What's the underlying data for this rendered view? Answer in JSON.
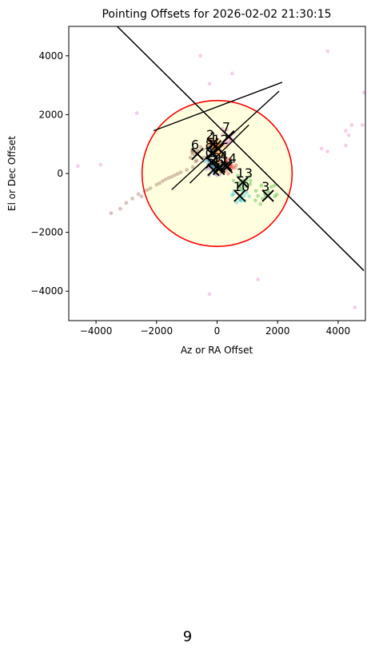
{
  "page": {
    "number": "9"
  },
  "chart_data": {
    "type": "scatter",
    "title": "Pointing Offsets for 2026-02-02 21:30:15",
    "xlabel": "Az or RA Offset",
    "ylabel": "El or Dec Offset",
    "xlim": [
      -4900,
      4900
    ],
    "ylim": [
      -5000,
      5000
    ],
    "xticks": [
      -4000,
      -2000,
      0,
      2000,
      4000
    ],
    "yticks": [
      -4000,
      -2000,
      0,
      2000,
      4000
    ],
    "xtick_labels": [
      "−4000",
      "−2000",
      "0",
      "2000",
      "4000"
    ],
    "ytick_labels": [
      "−4000",
      "−2000",
      "0",
      "2000",
      "4000"
    ],
    "grid": false,
    "circle": {
      "center": [
        0,
        0
      ],
      "radius": 2480,
      "edge_color": "#ff0000",
      "fill_color": "#ffffe0"
    },
    "diagonal_line": {
      "points": [
        [
          -3300,
          5000
        ],
        [
          4850,
          -3300
        ]
      ],
      "color": "#000000"
    },
    "clusters": [
      {
        "label": "0",
        "x": -180,
        "y": 380,
        "color": "#1f77b4",
        "spread": 180
      },
      {
        "label": "1",
        "x": -50,
        "y": 930,
        "color": "#ff7f0e",
        "spread": 120
      },
      {
        "label": "2",
        "x": -150,
        "y": 1000,
        "color": "#ff7f0e",
        "spread": 120
      },
      {
        "label": "3",
        "x": 1680,
        "y": -760,
        "color": "#2ca02c",
        "spread": 280
      },
      {
        "label": "4",
        "x": 300,
        "y": 280,
        "color": "#d62728",
        "spread": 200
      },
      {
        "label": "5",
        "x": -120,
        "y": 120,
        "color": "#9467bd",
        "spread": 200
      },
      {
        "label": "6",
        "x": -650,
        "y": 660,
        "color": "#8c564b",
        "spread": 160
      },
      {
        "label": "7",
        "x": 380,
        "y": 1260,
        "color": "#e377c2",
        "spread": 160
      },
      {
        "label": "8",
        "x": -180,
        "y": 680,
        "color": "#7f7f7f",
        "spread": 150
      },
      {
        "label": "9",
        "x": 80,
        "y": 220,
        "color": "#bcbd22",
        "spread": 150
      },
      {
        "label": "10",
        "x": 750,
        "y": -760,
        "color": "#17becf",
        "spread": 260
      },
      {
        "label": "11",
        "x": 60,
        "y": 150,
        "color": "#1f77b4",
        "spread": 150
      },
      {
        "label": "12",
        "x": 50,
        "y": 840,
        "color": "#ff7f0e",
        "spread": 130
      },
      {
        "label": "13",
        "x": 850,
        "y": -300,
        "color": "#2ca02c",
        "spread": 220
      },
      {
        "label": "14",
        "x": 320,
        "y": 210,
        "color": "#d62728",
        "spread": 180
      }
    ],
    "trail": {
      "color": "#8c564b",
      "points": [
        [
          -2600,
          -700
        ],
        [
          -2400,
          -600
        ],
        [
          -2200,
          -500
        ],
        [
          -2000,
          -380
        ],
        [
          -1800,
          -260
        ],
        [
          -1600,
          -150
        ],
        [
          -1400,
          -60
        ],
        [
          -1200,
          40
        ],
        [
          -1000,
          120
        ],
        [
          -800,
          220
        ],
        [
          -2800,
          -850
        ],
        [
          -3000,
          -1000
        ],
        [
          -3200,
          -1200
        ],
        [
          -3500,
          -1350
        ],
        [
          -2500,
          -780
        ],
        [
          -2300,
          -560
        ],
        [
          -1900,
          -330
        ],
        [
          -1700,
          -200
        ],
        [
          -1500,
          -110
        ],
        [
          -1300,
          -10
        ]
      ]
    },
    "outliers": {
      "color": "#e377c2",
      "points": [
        [
          -550,
          4000
        ],
        [
          -250,
          3050
        ],
        [
          500,
          3400
        ],
        [
          3650,
          4150
        ],
        [
          4250,
          1450
        ],
        [
          4350,
          1300
        ],
        [
          4250,
          950
        ],
        [
          4450,
          1650
        ],
        [
          4800,
          1650
        ],
        [
          4850,
          2750
        ],
        [
          3450,
          850
        ],
        [
          3650,
          750
        ],
        [
          -2650,
          2050
        ],
        [
          -4600,
          250
        ],
        [
          -3850,
          300
        ],
        [
          1350,
          -3600
        ],
        [
          -250,
          -4100
        ],
        [
          4550,
          -4550
        ]
      ]
    }
  }
}
